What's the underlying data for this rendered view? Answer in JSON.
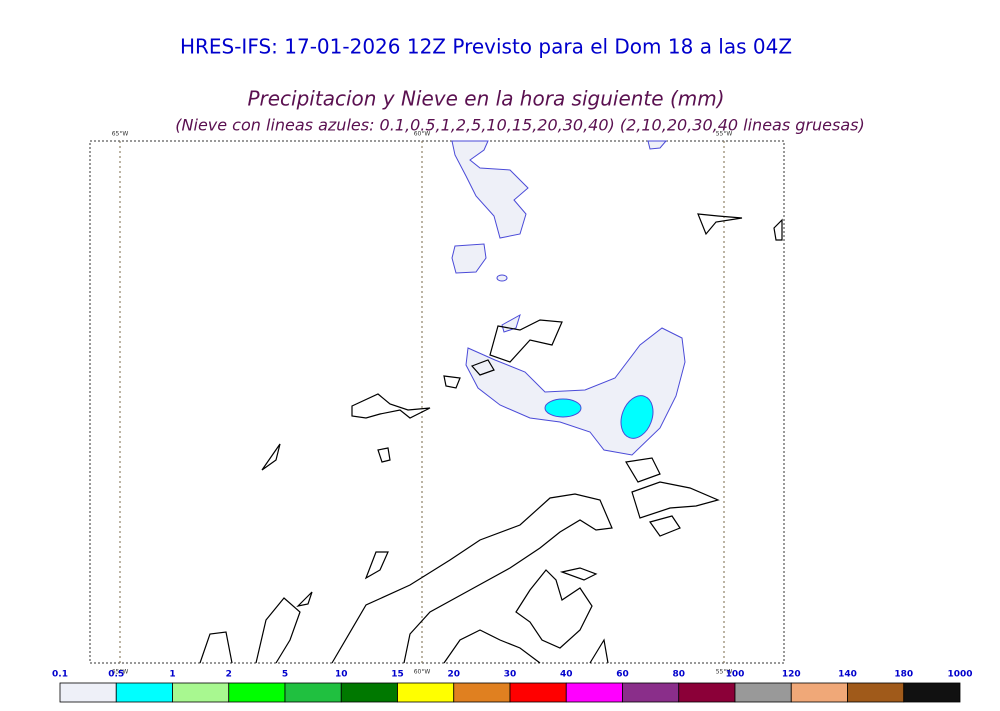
{
  "header": {
    "title": "HRES-IFS: 17-01-2026 12Z Previsto para el Dom 18 a las 04Z",
    "subtitle": "Precipitacion y Nieve en la hora siguiente (mm)",
    "note": "(Nieve con lineas azules: 0.1,0.5,1,2,5,10,15,20,30,40)  (2,10,20,30,40 lineas gruesas)"
  },
  "map": {
    "lon_labels": [
      "65°W",
      "60°W",
      "55°W"
    ]
  },
  "colorbar": {
    "labels": [
      0.1,
      0.5,
      1,
      2,
      5,
      10,
      15,
      20,
      30,
      40,
      60,
      80,
      100,
      120,
      140,
      180,
      1000
    ],
    "colors": [
      "#eef0f8",
      "#00ffff",
      "#a8f890",
      "#00ff00",
      "#20c040",
      "#007800",
      "#ffff00",
      "#e08020",
      "#ff0000",
      "#ff00ff",
      "#8a2e8a",
      "#8b0038",
      "#999999",
      "#f0a878",
      "#a05a1a",
      "#111111"
    ]
  }
}
